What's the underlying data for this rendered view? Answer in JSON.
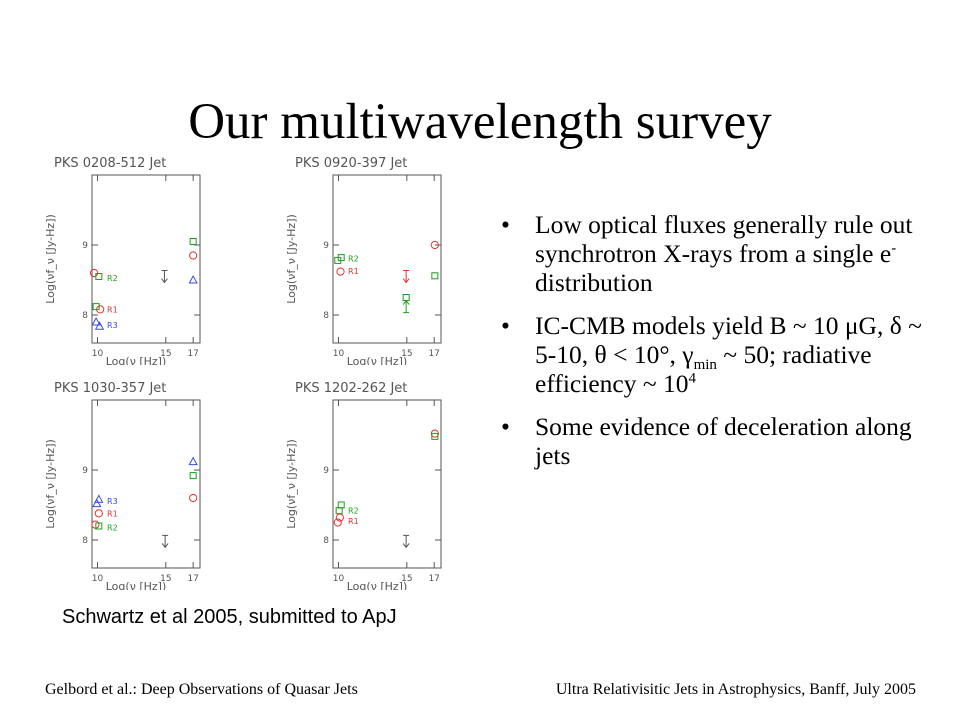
{
  "slide": {
    "title": "Our multiwavelength survey",
    "caption": "Schwartz et al 2005, submitted to ApJ",
    "footer_left": "Gelbord et al.: Deep Observations of Quasar Jets",
    "footer_right": "Ultra Relativisitic Jets in Astrophysics, Banff, July 2005",
    "bullets": [
      {
        "segments": [
          "Low optical fluxes generally rule out synchrotron X-rays from a single e",
          "-",
          " distribution"
        ]
      },
      {
        "segments": [
          "IC-CMB models yield B ~ 10 μG, δ ~ 5-10, θ < 10°, γ",
          "min",
          " ~ 50; radiative efficiency ~ 10",
          "4"
        ]
      },
      {
        "segments": [
          "Some evidence of deceleration along jets"
        ]
      }
    ],
    "bullet_marker": "•"
  },
  "colors": {
    "red": "#e03030",
    "green": "#1aa01a",
    "blue": "#3a4ee0",
    "axis": "#555555"
  },
  "chart_data": [
    {
      "type": "scatter",
      "title": "PKS 0208-512 Jet",
      "xlabel": "Log(ν [Hz])",
      "ylabel": "Log(νf_ν [Jy-Hz])",
      "xlim": [
        9.6,
        17.5
      ],
      "ylim": [
        7.6,
        10.0
      ],
      "xticks": [
        10,
        15,
        17
      ],
      "yticks": [
        8,
        9
      ],
      "series": [
        {
          "name": "R1",
          "color": "red",
          "points": [
            {
              "x": 9.75,
              "y": 8.6,
              "m": "circle"
            },
            {
              "x": 17.0,
              "y": 8.85,
              "m": "circle"
            },
            {
              "x": 10.2,
              "y": 8.08,
              "m": "circle"
            }
          ]
        },
        {
          "name": "R2",
          "color": "green",
          "points": [
            {
              "x": 10.1,
              "y": 8.55,
              "m": "square"
            },
            {
              "x": 17.0,
              "y": 9.05,
              "m": "square"
            },
            {
              "x": 9.9,
              "y": 8.12,
              "m": "square"
            }
          ]
        },
        {
          "name": "R3",
          "color": "blue",
          "points": [
            {
              "x": 17.0,
              "y": 8.5,
              "m": "triangle"
            },
            {
              "x": 9.9,
              "y": 7.9,
              "m": "triangle"
            },
            {
              "x": 10.15,
              "y": 7.84,
              "m": "triangle"
            }
          ]
        }
      ],
      "upper_limits": [
        {
          "x": 14.9,
          "y": 8.55,
          "color": "axis"
        }
      ],
      "labels": [
        {
          "text": "R2",
          "x": 10.7,
          "y": 8.53,
          "color": "green"
        },
        {
          "text": "R1",
          "x": 10.7,
          "y": 8.08,
          "color": "red"
        },
        {
          "text": "R3",
          "x": 10.7,
          "y": 7.86,
          "color": "blue"
        }
      ]
    },
    {
      "type": "scatter",
      "title": "PKS 0920-397 Jet",
      "xlabel": "Log(ν [Hz])",
      "ylabel": "Log(νf_ν [Jy-Hz])",
      "xlim": [
        9.6,
        17.5
      ],
      "ylim": [
        7.6,
        10.0
      ],
      "xticks": [
        10,
        15,
        17
      ],
      "yticks": [
        8,
        9
      ],
      "series": [
        {
          "name": "R1",
          "color": "red",
          "points": [
            {
              "x": 10.15,
              "y": 8.62,
              "m": "circle"
            },
            {
              "x": 17.05,
              "y": 9.0,
              "m": "circle"
            }
          ]
        },
        {
          "name": "R2",
          "color": "green",
          "points": [
            {
              "x": 9.95,
              "y": 8.78,
              "m": "square"
            },
            {
              "x": 10.2,
              "y": 8.82,
              "m": "square"
            },
            {
              "x": 17.05,
              "y": 8.56,
              "m": "square"
            },
            {
              "x": 14.95,
              "y": 8.25,
              "m": "square"
            }
          ]
        }
      ],
      "upper_limits": [
        {
          "x": 14.95,
          "y": 8.55,
          "color": "red"
        }
      ],
      "lower_limits": [
        {
          "x": 14.95,
          "y": 8.12,
          "color": "green"
        }
      ],
      "labels": [
        {
          "text": "R2",
          "x": 10.7,
          "y": 8.81,
          "color": "green"
        },
        {
          "text": "R1",
          "x": 10.7,
          "y": 8.63,
          "color": "red"
        }
      ]
    },
    {
      "type": "scatter",
      "title": "PKS 1030-357 Jet",
      "xlabel": "Log(ν [Hz])",
      "ylabel": "Log(νf_ν [Jy-Hz])",
      "xlim": [
        9.6,
        17.5
      ],
      "ylim": [
        7.6,
        10.0
      ],
      "xticks": [
        10,
        15,
        17
      ],
      "yticks": [
        8,
        9
      ],
      "series": [
        {
          "name": "R1",
          "color": "red",
          "points": [
            {
              "x": 10.1,
              "y": 8.38,
              "m": "circle"
            },
            {
              "x": 9.85,
              "y": 8.22,
              "m": "circle"
            },
            {
              "x": 17.0,
              "y": 8.6,
              "m": "circle"
            }
          ]
        },
        {
          "name": "R2",
          "color": "green",
          "points": [
            {
              "x": 10.1,
              "y": 8.2,
              "m": "square"
            },
            {
              "x": 17.0,
              "y": 8.92,
              "m": "square"
            }
          ]
        },
        {
          "name": "R3",
          "color": "blue",
          "points": [
            {
              "x": 10.1,
              "y": 8.58,
              "m": "triangle"
            },
            {
              "x": 9.95,
              "y": 8.52,
              "m": "triangle"
            },
            {
              "x": 17.0,
              "y": 9.12,
              "m": "triangle"
            }
          ]
        }
      ],
      "upper_limits": [
        {
          "x": 14.95,
          "y": 7.98,
          "color": "axis"
        }
      ],
      "labels": [
        {
          "text": "R3",
          "x": 10.7,
          "y": 8.56,
          "color": "blue"
        },
        {
          "text": "R1",
          "x": 10.7,
          "y": 8.38,
          "color": "red"
        },
        {
          "text": "R2",
          "x": 10.7,
          "y": 8.18,
          "color": "green"
        }
      ]
    },
    {
      "type": "scatter",
      "title": "PKS 1202-262 Jet",
      "xlabel": "Log(ν [Hz])",
      "ylabel": "Log(νf_ν [Jy-Hz])",
      "xlim": [
        9.6,
        17.5
      ],
      "ylim": [
        7.6,
        10.0
      ],
      "xticks": [
        10,
        15,
        17
      ],
      "yticks": [
        8,
        9
      ],
      "series": [
        {
          "name": "R1",
          "color": "red",
          "points": [
            {
              "x": 10.1,
              "y": 8.32,
              "m": "circle"
            },
            {
              "x": 9.95,
              "y": 8.25,
              "m": "circle"
            },
            {
              "x": 17.05,
              "y": 9.52,
              "m": "circle"
            }
          ]
        },
        {
          "name": "R2",
          "color": "green",
          "points": [
            {
              "x": 10.2,
              "y": 8.5,
              "m": "square"
            },
            {
              "x": 10.05,
              "y": 8.42,
              "m": "square"
            },
            {
              "x": 17.05,
              "y": 9.48,
              "m": "square"
            }
          ]
        }
      ],
      "upper_limits": [
        {
          "x": 14.95,
          "y": 7.98,
          "color": "axis"
        }
      ],
      "labels": [
        {
          "text": "R2",
          "x": 10.7,
          "y": 8.42,
          "color": "green"
        },
        {
          "text": "R1",
          "x": 10.7,
          "y": 8.27,
          "color": "red"
        }
      ]
    }
  ]
}
